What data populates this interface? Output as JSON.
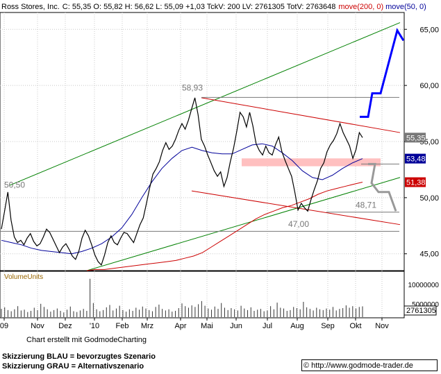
{
  "header": {
    "company": "Ross Stores, Inc.",
    "ohlc": "C: 55,35 O: 55,82 H: 56,62 L: 55,09 +1,03 TckV: 200 LV: 2761305 TotV: 2763648",
    "ma200_label": "move(200, 0)",
    "ma50_label": "move(50, 0)"
  },
  "colors": {
    "price": "#000000",
    "ma200": "#cc0000",
    "ma50": "#000099",
    "channel_green": "#008000",
    "channel_red": "#cc0000",
    "scenario_blue": "#0000ff",
    "scenario_grey": "#999999",
    "support_zone": "#ffc0c0",
    "grid": "#c8c8c8"
  },
  "chart_data": {
    "type": "line",
    "ylim": [
      43.5,
      66.5
    ],
    "yticks": [
      "45,00",
      "50,00",
      "55,00",
      "60,00",
      "65,00"
    ],
    "ytick_values": [
      45,
      50,
      55,
      60,
      65
    ],
    "xticks": [
      "09",
      "Nov",
      "Dez",
      "'10",
      "Feb",
      "Mrz",
      "Apr",
      "Mai",
      "Jun",
      "Jul",
      "Aug",
      "Sep",
      "Okt",
      "Nov"
    ],
    "series": [
      {
        "kind": "price",
        "values": [
          47.2,
          48.8,
          50.5,
          48.0,
          46.5,
          46.0,
          46.2,
          45.8,
          46.4,
          46.8,
          46.1,
          45.7,
          45.9,
          46.5,
          47.2,
          46.9,
          46.3,
          45.7,
          45.1,
          45.6,
          45.9,
          45.4,
          44.8,
          44.5,
          45.2,
          46.4,
          47.1,
          46.6,
          45.8,
          44.9,
          44.3,
          44.0,
          44.9,
          46.0,
          46.6,
          46.0,
          45.8,
          46.4,
          46.9,
          46.8,
          46.4,
          46.0,
          46.8,
          47.6,
          48.2,
          49.5,
          50.9,
          52.1,
          52.6,
          53.2,
          54.2,
          54.9,
          54.3,
          54.6,
          55.2,
          56.0,
          56.6,
          56.1,
          56.9,
          57.9,
          58.9,
          57.4,
          55.2,
          54.6,
          53.8,
          53.1,
          52.4,
          51.9,
          52.3,
          51.0,
          51.8,
          53.2,
          54.4,
          55.9,
          57.6,
          57.2,
          56.3,
          57.6,
          56.4,
          54.8,
          54.2,
          53.8,
          54.6,
          54.0,
          53.8,
          54.7,
          55.4,
          54.1,
          53.3,
          52.6,
          51.9,
          50.5,
          48.9,
          49.5,
          49.1,
          48.8,
          49.8,
          50.7,
          51.5,
          52.6,
          53.1,
          54.1,
          54.7,
          55.1,
          55.7,
          56.6,
          55.8,
          55.2,
          54.6,
          53.5,
          54.3,
          55.8,
          55.35
        ],
        "unit_label": "55,35"
      },
      {
        "name": "move(200, 0)",
        "kind": "ma200",
        "values": [
          43.5,
          43.6,
          43.6,
          43.7,
          43.8,
          43.9,
          44.0,
          44.1,
          44.2,
          44.3,
          44.4,
          44.6,
          44.8,
          45.1,
          45.6,
          46.1,
          46.6,
          47.1,
          47.6,
          48.1,
          48.5,
          48.8,
          49.1,
          49.3,
          49.6,
          49.9,
          50.3,
          50.6,
          50.8,
          51.0,
          51.2,
          51.38
        ],
        "end_label": "51,38"
      },
      {
        "name": "move(50, 0)",
        "kind": "ma50",
        "values": [
          46.2,
          46.0,
          45.8,
          45.5,
          45.3,
          45.2,
          45.1,
          45.0,
          45.2,
          45.5,
          45.9,
          46.5,
          47.3,
          48.5,
          50.0,
          51.4,
          52.6,
          53.5,
          54.2,
          54.5,
          54.2,
          54.0,
          53.9,
          53.9,
          54.3,
          54.7,
          54.8,
          54.6,
          54.0,
          53.3,
          52.4,
          51.8,
          51.6,
          52.0,
          52.6,
          53.1,
          53.48
        ],
        "end_label": "53,48"
      }
    ],
    "annotations": {
      "levels": [
        "58,93",
        "50,50",
        "48,71",
        "47,00"
      ],
      "level_values": [
        58.93,
        50.5,
        48.71,
        47.0
      ]
    },
    "volume_label": "VolumeUnits",
    "volume_ticks": [
      "10000000",
      "5000000"
    ],
    "volume_last": "2761305",
    "volume_values": [
      2.1,
      2.5,
      1.8,
      1.5,
      2.0,
      2.8,
      1.7,
      1.9,
      1.3,
      1.6,
      2.4,
      1.8,
      3.4,
      2.6,
      2.0,
      1.4,
      1.8,
      2.2,
      1.6,
      1.2,
      1.9,
      2.7,
      1.5,
      1.3,
      1.7,
      2.1,
      1.6,
      9.8,
      3.6,
      2.0,
      1.5,
      1.8,
      2.5,
      3.1,
      1.7,
      2.2,
      2.9,
      1.8,
      1.4,
      2.0,
      1.6,
      2.4,
      1.9,
      2.7,
      2.2,
      1.8,
      1.5,
      2.6,
      3.2,
      2.1,
      1.7,
      2.0,
      1.4,
      1.6,
      2.3,
      3.5,
      2.8,
      2.4,
      3.0,
      2.6,
      3.3,
      4.1,
      2.9,
      2.2,
      1.9,
      2.7,
      2.1,
      3.6,
      2.4,
      1.8,
      2.3,
      2.0,
      1.7,
      2.9,
      2.2,
      1.8,
      2.5,
      1.6,
      1.9,
      2.1,
      1.5,
      1.7,
      2.8,
      2.0,
      3.7,
      2.4,
      2.2,
      1.6,
      1.8,
      2.6,
      2.3,
      2.0,
      3.9,
      2.5,
      2.1,
      1.7,
      2.4,
      2.0,
      1.8,
      2.2,
      1.9,
      2.6,
      1.7,
      2.1,
      2.3,
      3.0,
      2.4,
      2.8,
      2.2,
      2.6,
      2.76
    ]
  },
  "footer": {
    "credit": "Chart erstellt mit GodmodeCharting",
    "note_blue": "Skizzierung BLAU = bevorzugtes Szenario",
    "note_grey": "Skizzierung GRAU = Alternativszenario",
    "url": "© http://www.godmode-trader.de"
  }
}
